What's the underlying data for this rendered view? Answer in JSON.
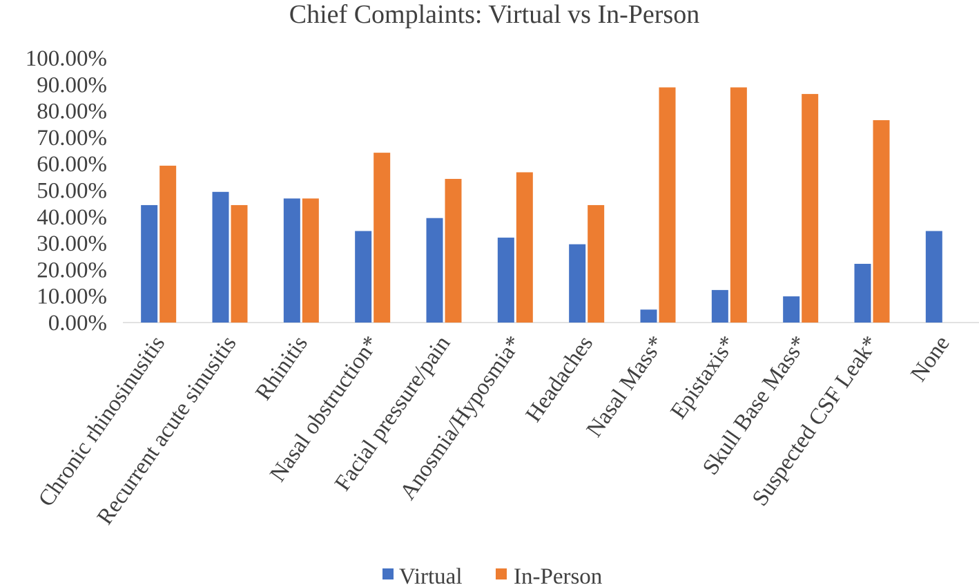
{
  "chart_data": {
    "type": "bar",
    "title": "Chief Complaints: Virtual vs In-Person",
    "xlabel": "",
    "ylabel": "",
    "ylim": [
      0,
      100
    ],
    "ytick_values": [
      0,
      10,
      20,
      30,
      40,
      50,
      60,
      70,
      80,
      90,
      100
    ],
    "ytick_labels": [
      "0.00%",
      "10.00%",
      "20.00%",
      "30.00%",
      "40.00%",
      "50.00%",
      "60.00%",
      "70.00%",
      "80.00%",
      "90.00%",
      "100.00%"
    ],
    "categories": [
      "Chronic rhinosinusitis",
      "Recurrent acute sinusitis",
      "Rhinitis",
      "Nasal obstruction*",
      "Facial pressure/pain",
      "Anosmia/Hyposmia*",
      "Headaches",
      "Nasal Mass*",
      "Epistaxis*",
      "Skull Base Mass*",
      "Suspected CSF Leak*",
      "None"
    ],
    "series": [
      {
        "name": "Virtual",
        "color": "#4472C4",
        "values": [
          44.4,
          49.4,
          46.9,
          34.6,
          39.5,
          32.1,
          29.6,
          4.9,
          12.3,
          9.9,
          22.2,
          34.6
        ]
      },
      {
        "name": "In-Person",
        "color": "#ED7D31",
        "values": [
          59.3,
          44.4,
          46.9,
          64.2,
          54.3,
          56.8,
          44.4,
          88.9,
          88.9,
          86.4,
          76.5,
          0
        ]
      }
    ],
    "legend_position": "bottom",
    "grid": false
  }
}
